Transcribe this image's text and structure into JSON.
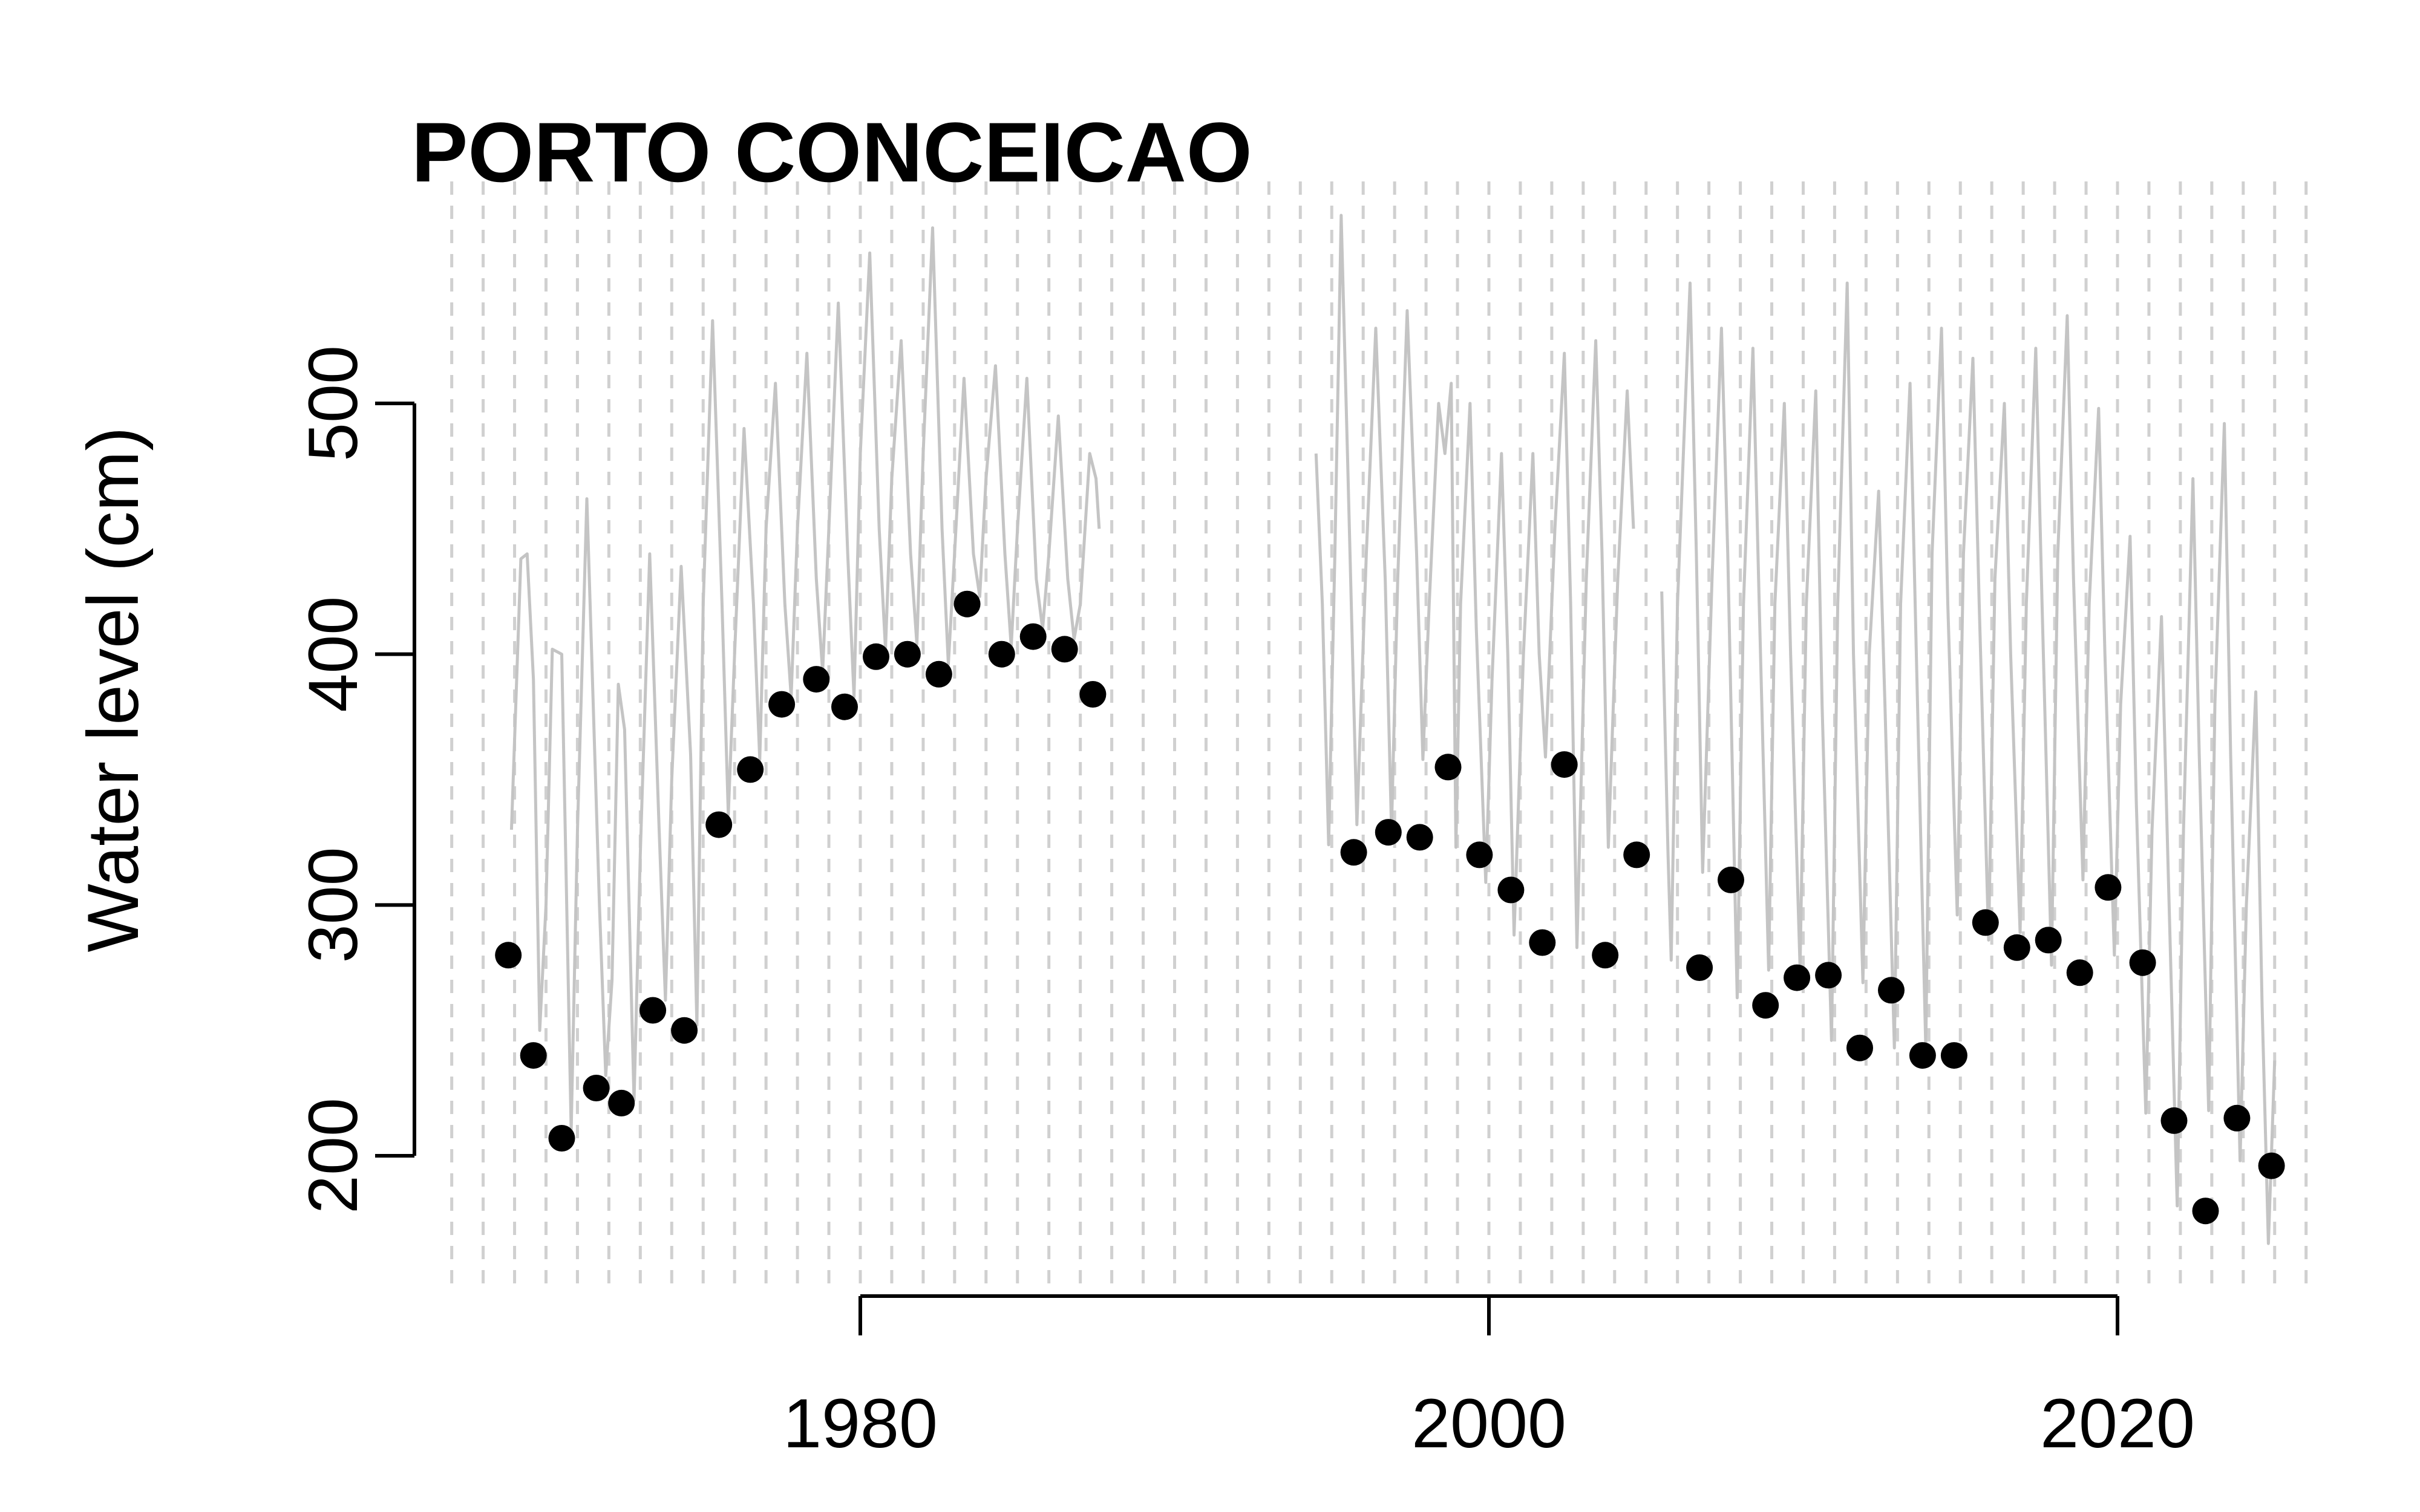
{
  "chart_data": {
    "type": "scatter",
    "title": "PORTO CONCEICAO",
    "xlabel": "",
    "ylabel": "Water level (cm)",
    "xlim": [
      1966,
      2026.8
    ],
    "ylim": [
      150,
      590
    ],
    "x_ticks": [
      1980,
      2000,
      2020
    ],
    "y_ticks": [
      200,
      300,
      400,
      500
    ],
    "grid": "vertical dashed lines at each year",
    "legend": "none",
    "colors": {
      "daily_series": "#c4c4c4",
      "annual_points": "#000000",
      "grid": "#d0d0d0"
    },
    "series": [
      {
        "type": "line",
        "color": "#c4c4c4",
        "description_units": "water level (cm)",
        "segments": [
          [
            [
              1968.9,
              330
            ],
            [
              1969.2,
              438
            ],
            [
              1969.4,
              440
            ],
            [
              1969.6,
              390
            ],
            [
              1969.8,
              250
            ],
            [
              1970.0,
              300
            ],
            [
              1970.2,
              402
            ],
            [
              1970.5,
              400
            ],
            [
              1970.8,
              210
            ],
            [
              1971.0,
              330
            ],
            [
              1971.3,
              462
            ],
            [
              1971.7,
              300
            ],
            [
              1971.9,
              232
            ],
            [
              1972.1,
              270
            ],
            [
              1972.3,
              388
            ],
            [
              1972.5,
              370
            ],
            [
              1972.8,
              222
            ],
            [
              1973.0,
              320
            ],
            [
              1973.3,
              440
            ],
            [
              1973.6,
              330
            ],
            [
              1973.8,
              262
            ],
            [
              1974.0,
              350
            ],
            [
              1974.3,
              435
            ],
            [
              1974.6,
              360
            ],
            [
              1974.8,
              252
            ],
            [
              1975.0,
              420
            ],
            [
              1975.3,
              533
            ],
            [
              1975.6,
              420
            ],
            [
              1975.8,
              336
            ],
            [
              1976.0,
              400
            ],
            [
              1976.3,
              490
            ],
            [
              1976.6,
              420
            ],
            [
              1976.8,
              358
            ],
            [
              1977.0,
              450
            ],
            [
              1977.3,
              508
            ],
            [
              1977.6,
              420
            ],
            [
              1977.8,
              383
            ],
            [
              1978.0,
              450
            ],
            [
              1978.3,
              520
            ],
            [
              1978.6,
              430
            ],
            [
              1978.8,
              393
            ],
            [
              1979.0,
              450
            ],
            [
              1979.3,
              540
            ],
            [
              1979.6,
              440
            ],
            [
              1979.8,
              383
            ],
            [
              1980.0,
              480
            ],
            [
              1980.3,
              560
            ],
            [
              1980.6,
              450
            ],
            [
              1980.8,
              402
            ],
            [
              1981.0,
              470
            ],
            [
              1981.3,
              525
            ],
            [
              1981.6,
              440
            ],
            [
              1981.8,
              404
            ],
            [
              1982.0,
              480
            ],
            [
              1982.3,
              570
            ],
            [
              1982.6,
              450
            ],
            [
              1982.8,
              396
            ],
            [
              1983.0,
              440
            ],
            [
              1983.3,
              510
            ],
            [
              1983.6,
              440
            ],
            [
              1983.8,
              423
            ],
            [
              1984.0,
              470
            ],
            [
              1984.3,
              515
            ],
            [
              1984.6,
              440
            ],
            [
              1984.8,
              403
            ],
            [
              1985.0,
              450
            ],
            [
              1985.3,
              510
            ],
            [
              1985.6,
              430
            ],
            [
              1985.8,
              410
            ],
            [
              1986.0,
              440
            ],
            [
              1986.3,
              495
            ],
            [
              1986.6,
              430
            ],
            [
              1986.8,
              406
            ],
            [
              1987.0,
              420
            ],
            [
              1987.3,
              480
            ],
            [
              1987.5,
              470
            ],
            [
              1987.6,
              450
            ]
          ],
          [
            [
              1994.5,
              480
            ],
            [
              1994.7,
              420
            ],
            [
              1994.9,
              324
            ],
            [
              1995.1,
              440
            ],
            [
              1995.3,
              575
            ],
            [
              1995.5,
              480
            ],
            [
              1995.8,
              332
            ],
            [
              1996.1,
              440
            ],
            [
              1996.4,
              530
            ],
            [
              1996.7,
              430
            ],
            [
              1996.9,
              330
            ],
            [
              1997.1,
              430
            ],
            [
              1997.4,
              537
            ],
            [
              1997.7,
              440
            ],
            [
              1997.9,
              358
            ],
            [
              1998.1,
              420
            ],
            [
              1998.4,
              500
            ],
            [
              1998.6,
              480
            ],
            [
              1998.8,
              508
            ],
            [
              1998.95,
              323
            ],
            [
              1999.1,
              420
            ],
            [
              1999.4,
              500
            ],
            [
              1999.6,
              410
            ],
            [
              1999.9,
              309
            ],
            [
              2000.1,
              390
            ],
            [
              2000.4,
              480
            ],
            [
              2000.6,
              400
            ],
            [
              2000.8,
              288
            ],
            [
              2001.1,
              400
            ],
            [
              2001.4,
              480
            ],
            [
              2001.6,
              400
            ],
            [
              2001.8,
              359
            ],
            [
              2002.1,
              450
            ],
            [
              2002.4,
              520
            ],
            [
              2002.6,
              420
            ],
            [
              2002.8,
              283
            ],
            [
              2003.1,
              430
            ],
            [
              2003.4,
              525
            ],
            [
              2003.6,
              440
            ],
            [
              2003.8,
              323
            ],
            [
              2004.1,
              430
            ],
            [
              2004.4,
              505
            ],
            [
              2004.6,
              450
            ]
          ],
          [
            [
              2005.5,
              425
            ],
            [
              2005.7,
              320
            ],
            [
              2005.8,
              278
            ],
            [
              2006.0,
              420
            ],
            [
              2006.4,
              548
            ],
            [
              2006.6,
              440
            ],
            [
              2006.8,
              313
            ],
            [
              2007.1,
              430
            ],
            [
              2007.4,
              530
            ],
            [
              2007.6,
              440
            ],
            [
              2007.9,
              263
            ],
            [
              2008.1,
              420
            ],
            [
              2008.4,
              522
            ],
            [
              2008.6,
              420
            ],
            [
              2008.9,
              274
            ],
            [
              2009.1,
              420
            ],
            [
              2009.4,
              500
            ],
            [
              2009.6,
              400
            ],
            [
              2009.9,
              275
            ],
            [
              2010.1,
              420
            ],
            [
              2010.4,
              505
            ],
            [
              2010.6,
              380
            ],
            [
              2010.9,
              246
            ],
            [
              2011.1,
              420
            ],
            [
              2011.4,
              548
            ],
            [
              2011.6,
              400
            ],
            [
              2011.9,
              269
            ],
            [
              2012.1,
              400
            ],
            [
              2012.4,
              465
            ],
            [
              2012.6,
              380
            ],
            [
              2012.9,
              243
            ],
            [
              2013.1,
              420
            ],
            [
              2013.4,
              508
            ],
            [
              2013.6,
              400
            ],
            [
              2013.9,
              243
            ],
            [
              2014.1,
              440
            ],
            [
              2014.4,
              530
            ],
            [
              2014.6,
              420
            ],
            [
              2014.9,
              296
            ],
            [
              2015.1,
              440
            ],
            [
              2015.4,
              518
            ],
            [
              2015.6,
              420
            ],
            [
              2015.9,
              286
            ],
            [
              2016.1,
              430
            ],
            [
              2016.4,
              500
            ],
            [
              2016.6,
              400
            ],
            [
              2016.9,
              289
            ],
            [
              2017.1,
              420
            ],
            [
              2017.4,
              522
            ],
            [
              2017.6,
              420
            ],
            [
              2017.9,
              276
            ],
            [
              2018.1,
              440
            ],
            [
              2018.4,
              535
            ],
            [
              2018.6,
              430
            ],
            [
              2018.9,
              310
            ],
            [
              2019.1,
              420
            ],
            [
              2019.4,
              498
            ],
            [
              2019.6,
              400
            ],
            [
              2019.9,
              280
            ],
            [
              2020.1,
              380
            ],
            [
              2020.4,
              447
            ],
            [
              2020.6,
              340
            ],
            [
              2020.9,
              217
            ],
            [
              2021.1,
              330
            ],
            [
              2021.4,
              415
            ],
            [
              2021.6,
              320
            ],
            [
              2021.9,
              180
            ],
            [
              2022.1,
              330
            ],
            [
              2022.4,
              470
            ],
            [
              2022.6,
              360
            ],
            [
              2022.9,
              218
            ],
            [
              2023.1,
              380
            ],
            [
              2023.4,
              492
            ],
            [
              2023.6,
              360
            ],
            [
              2023.9,
              198
            ],
            [
              2024.1,
              300
            ],
            [
              2024.4,
              385
            ],
            [
              2024.6,
              260
            ],
            [
              2024.8,
              165
            ],
            [
              2025.0,
              238
            ]
          ]
        ]
      },
      {
        "type": "scatter",
        "color": "#000000",
        "description_units": "water level (cm)",
        "points": [
          [
            1968.8,
            280
          ],
          [
            1969.6,
            240
          ],
          [
            1970.5,
            207
          ],
          [
            1971.6,
            227
          ],
          [
            1972.4,
            221
          ],
          [
            1973.4,
            258
          ],
          [
            1974.4,
            250
          ],
          [
            1975.5,
            332
          ],
          [
            1976.5,
            354
          ],
          [
            1977.5,
            380
          ],
          [
            1978.6,
            390
          ],
          [
            1979.5,
            379
          ],
          [
            1980.5,
            399
          ],
          [
            1981.5,
            400
          ],
          [
            1982.5,
            392
          ],
          [
            1983.4,
            420
          ],
          [
            1984.5,
            400
          ],
          [
            1985.5,
            407
          ],
          [
            1986.5,
            402
          ],
          [
            1987.4,
            384
          ],
          [
            1995.7,
            321
          ],
          [
            1996.8,
            329
          ],
          [
            1997.8,
            327
          ],
          [
            1998.7,
            355
          ],
          [
            1999.7,
            320
          ],
          [
            2000.7,
            306
          ],
          [
            2001.7,
            285
          ],
          [
            2002.4,
            356
          ],
          [
            2003.7,
            280
          ],
          [
            2004.7,
            320
          ],
          [
            2006.7,
            275
          ],
          [
            2007.7,
            310
          ],
          [
            2008.8,
            260
          ],
          [
            2009.8,
            271
          ],
          [
            2010.8,
            272
          ],
          [
            2011.8,
            243
          ],
          [
            2012.8,
            266
          ],
          [
            2013.8,
            240
          ],
          [
            2014.8,
            240
          ],
          [
            2015.8,
            293
          ],
          [
            2016.8,
            283
          ],
          [
            2017.8,
            286
          ],
          [
            2018.8,
            273
          ],
          [
            2019.7,
            307
          ],
          [
            2020.8,
            277
          ],
          [
            2021.8,
            214
          ],
          [
            2022.8,
            178
          ],
          [
            2023.8,
            215
          ],
          [
            2024.9,
            196
          ]
        ]
      }
    ]
  }
}
